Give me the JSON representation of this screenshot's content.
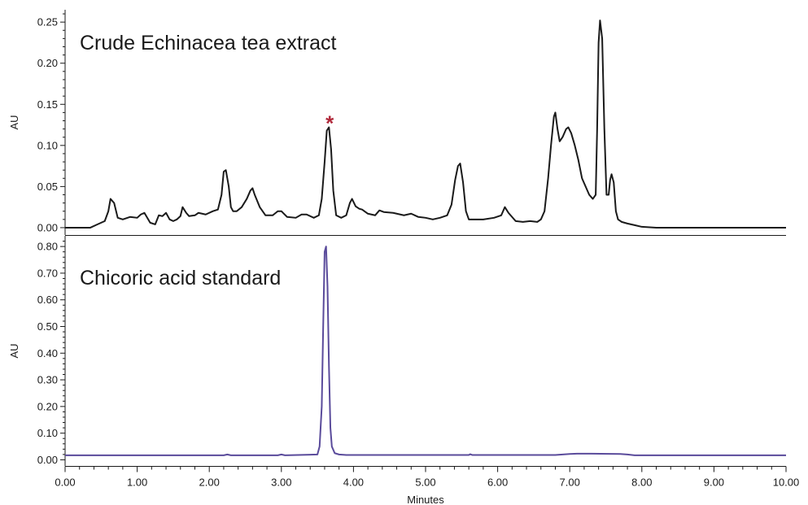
{
  "chart_data": [
    {
      "type": "line",
      "title": "Crude Echinacea tea extract",
      "ylabel": "AU",
      "xlabel": "",
      "xlim": [
        0,
        10
      ],
      "ylim": [
        -0.005,
        0.265
      ],
      "yticks": [
        "0.00",
        "0.05",
        "0.10",
        "0.15",
        "0.20",
        "0.25"
      ],
      "grid": false,
      "color": "#1a1a1a",
      "annotation": {
        "text": "*",
        "x": 3.67,
        "y": 0.138,
        "color": "#b0283a"
      },
      "series": [
        {
          "x": [
            0.0,
            0.35,
            0.45,
            0.55,
            0.6,
            0.63,
            0.68,
            0.73,
            0.8,
            0.9,
            1.0,
            1.05,
            1.1,
            1.18,
            1.25,
            1.3,
            1.35,
            1.4,
            1.45,
            1.5,
            1.55,
            1.6,
            1.63,
            1.68,
            1.72,
            1.8,
            1.85,
            1.95,
            2.05,
            2.12,
            2.17,
            2.2,
            2.23,
            2.27,
            2.3,
            2.33,
            2.38,
            2.45,
            2.52,
            2.57,
            2.6,
            2.63,
            2.7,
            2.78,
            2.88,
            2.95,
            3.0,
            3.08,
            3.2,
            3.28,
            3.35,
            3.45,
            3.52,
            3.56,
            3.6,
            3.63,
            3.66,
            3.69,
            3.72,
            3.76,
            3.83,
            3.9,
            3.95,
            3.98,
            4.03,
            4.08,
            4.12,
            4.2,
            4.3,
            4.36,
            4.42,
            4.55,
            4.7,
            4.8,
            4.9,
            5.0,
            5.1,
            5.2,
            5.3,
            5.36,
            5.41,
            5.45,
            5.48,
            5.52,
            5.56,
            5.6,
            5.7,
            5.8,
            5.95,
            6.05,
            6.1,
            6.15,
            6.25,
            6.35,
            6.45,
            6.55,
            6.6,
            6.65,
            6.7,
            6.74,
            6.78,
            6.8,
            6.83,
            6.86,
            6.9,
            6.95,
            6.98,
            7.02,
            7.07,
            7.12,
            7.17,
            7.22,
            7.27,
            7.32,
            7.36,
            7.38,
            7.4,
            7.42,
            7.45,
            7.48,
            7.51,
            7.54,
            7.56,
            7.58,
            7.61,
            7.64,
            7.67,
            7.72,
            7.8,
            7.9,
            8.0,
            8.2,
            10.0
          ],
          "y": [
            0.0,
            0.0,
            0.004,
            0.008,
            0.02,
            0.035,
            0.03,
            0.012,
            0.01,
            0.013,
            0.012,
            0.016,
            0.018,
            0.006,
            0.004,
            0.015,
            0.014,
            0.018,
            0.01,
            0.008,
            0.01,
            0.014,
            0.025,
            0.018,
            0.014,
            0.015,
            0.018,
            0.016,
            0.02,
            0.022,
            0.04,
            0.068,
            0.07,
            0.05,
            0.025,
            0.02,
            0.02,
            0.025,
            0.035,
            0.045,
            0.048,
            0.04,
            0.025,
            0.015,
            0.015,
            0.02,
            0.02,
            0.013,
            0.012,
            0.016,
            0.016,
            0.012,
            0.015,
            0.035,
            0.08,
            0.118,
            0.122,
            0.095,
            0.045,
            0.015,
            0.012,
            0.015,
            0.03,
            0.035,
            0.026,
            0.023,
            0.022,
            0.017,
            0.015,
            0.021,
            0.019,
            0.018,
            0.015,
            0.017,
            0.013,
            0.012,
            0.01,
            0.012,
            0.015,
            0.028,
            0.058,
            0.075,
            0.078,
            0.055,
            0.02,
            0.01,
            0.01,
            0.01,
            0.012,
            0.015,
            0.025,
            0.018,
            0.008,
            0.007,
            0.008,
            0.007,
            0.01,
            0.02,
            0.06,
            0.1,
            0.135,
            0.14,
            0.12,
            0.105,
            0.11,
            0.12,
            0.122,
            0.115,
            0.1,
            0.082,
            0.06,
            0.05,
            0.04,
            0.035,
            0.04,
            0.12,
            0.225,
            0.252,
            0.23,
            0.12,
            0.04,
            0.04,
            0.058,
            0.065,
            0.055,
            0.02,
            0.01,
            0.007,
            0.005,
            0.003,
            0.001,
            0.0,
            0.0
          ]
        }
      ]
    },
    {
      "type": "line",
      "title": "Chicoric acid standard",
      "ylabel": "AU",
      "xlabel": "Minutes",
      "xlim": [
        0,
        10
      ],
      "xticks": [
        "0.00",
        "1.00",
        "2.00",
        "3.00",
        "4.00",
        "5.00",
        "6.00",
        "7.00",
        "8.00",
        "9.00",
        "10.00"
      ],
      "ylim": [
        -0.02,
        0.84
      ],
      "yticks": [
        "0.00",
        "0.10",
        "0.20",
        "0.30",
        "0.40",
        "0.50",
        "0.60",
        "0.70",
        "0.80"
      ],
      "grid": false,
      "color": "#5a4b9b",
      "series": [
        {
          "x": [
            0.0,
            2.2,
            2.25,
            2.3,
            2.95,
            3.0,
            3.05,
            3.5,
            3.53,
            3.56,
            3.58,
            3.6,
            3.62,
            3.64,
            3.66,
            3.68,
            3.7,
            3.74,
            3.8,
            3.9,
            5.6,
            5.62,
            5.65,
            6.8,
            6.9,
            7.0,
            7.1,
            7.3,
            7.7,
            7.8,
            7.9,
            10.0
          ],
          "y": [
            0.017,
            0.017,
            0.02,
            0.017,
            0.017,
            0.02,
            0.017,
            0.02,
            0.05,
            0.2,
            0.5,
            0.78,
            0.8,
            0.65,
            0.35,
            0.12,
            0.05,
            0.025,
            0.02,
            0.018,
            0.018,
            0.021,
            0.018,
            0.018,
            0.02,
            0.022,
            0.023,
            0.023,
            0.022,
            0.02,
            0.017,
            0.017
          ]
        }
      ]
    }
  ]
}
